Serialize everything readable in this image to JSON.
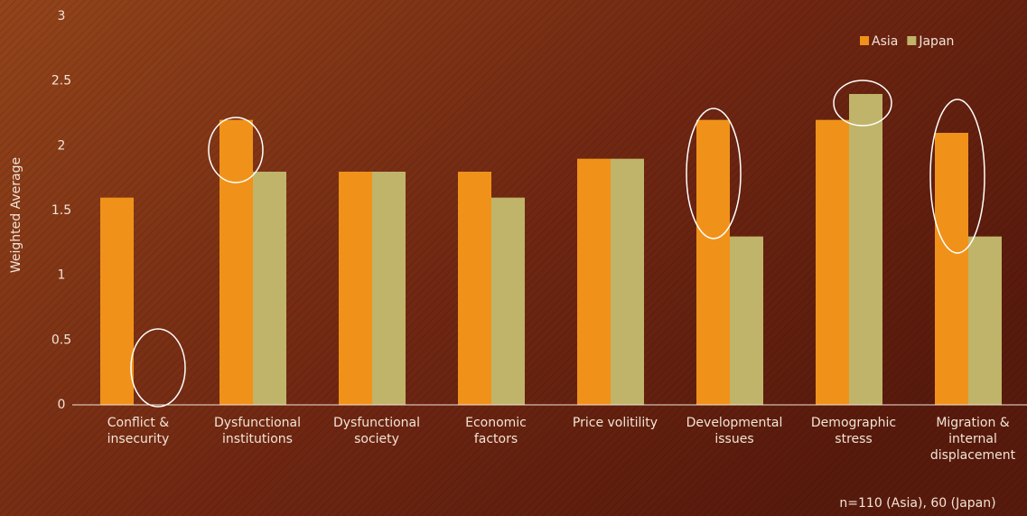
{
  "chart_data": {
    "type": "bar",
    "y_label": "Weighted Average",
    "categories": [
      "Conflict &\ninsecurity",
      "Dysfunctional\ninstitutions",
      "Dysfunctional\nsociety",
      "Economic\nfactors",
      "Price volitility",
      "Developmental\nissues",
      "Demographic\nstress",
      "Migration &\ninternal\ndisplacement"
    ],
    "series": [
      {
        "name": "Asia",
        "color": "#f0921a",
        "values": [
          1.6,
          2.2,
          1.8,
          1.8,
          1.9,
          2.2,
          2.2,
          2.1
        ]
      },
      {
        "name": "Japan",
        "color": "#bfb46a",
        "values": [
          0,
          1.8,
          1.8,
          1.6,
          1.9,
          1.3,
          2.4,
          1.3
        ]
      }
    ],
    "ylim": [
      0,
      3
    ],
    "yticks": [
      0,
      0.5,
      1,
      1.5,
      2,
      2.5,
      3
    ],
    "grid": false,
    "legend": "top-right",
    "note": "n=110 (Asia), 60 (Japan)"
  }
}
